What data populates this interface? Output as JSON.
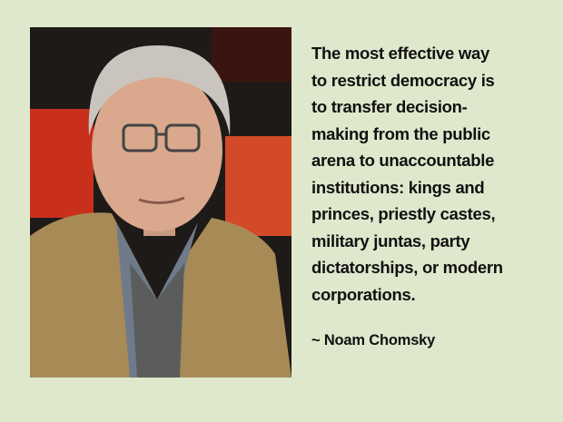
{
  "quote": {
    "lines": [
      "The most effective way",
      "to restrict democracy is",
      "to transfer decision-",
      "making from the public",
      "arena to unaccountable",
      "institutions: kings and",
      "princes, priestly castes,",
      "military juntas, party",
      "dictatorships, or modern",
      "corporations."
    ],
    "author": "~ Noam Chomsky"
  },
  "colors": {
    "background": "#dfe8cc",
    "text": "#111111"
  }
}
